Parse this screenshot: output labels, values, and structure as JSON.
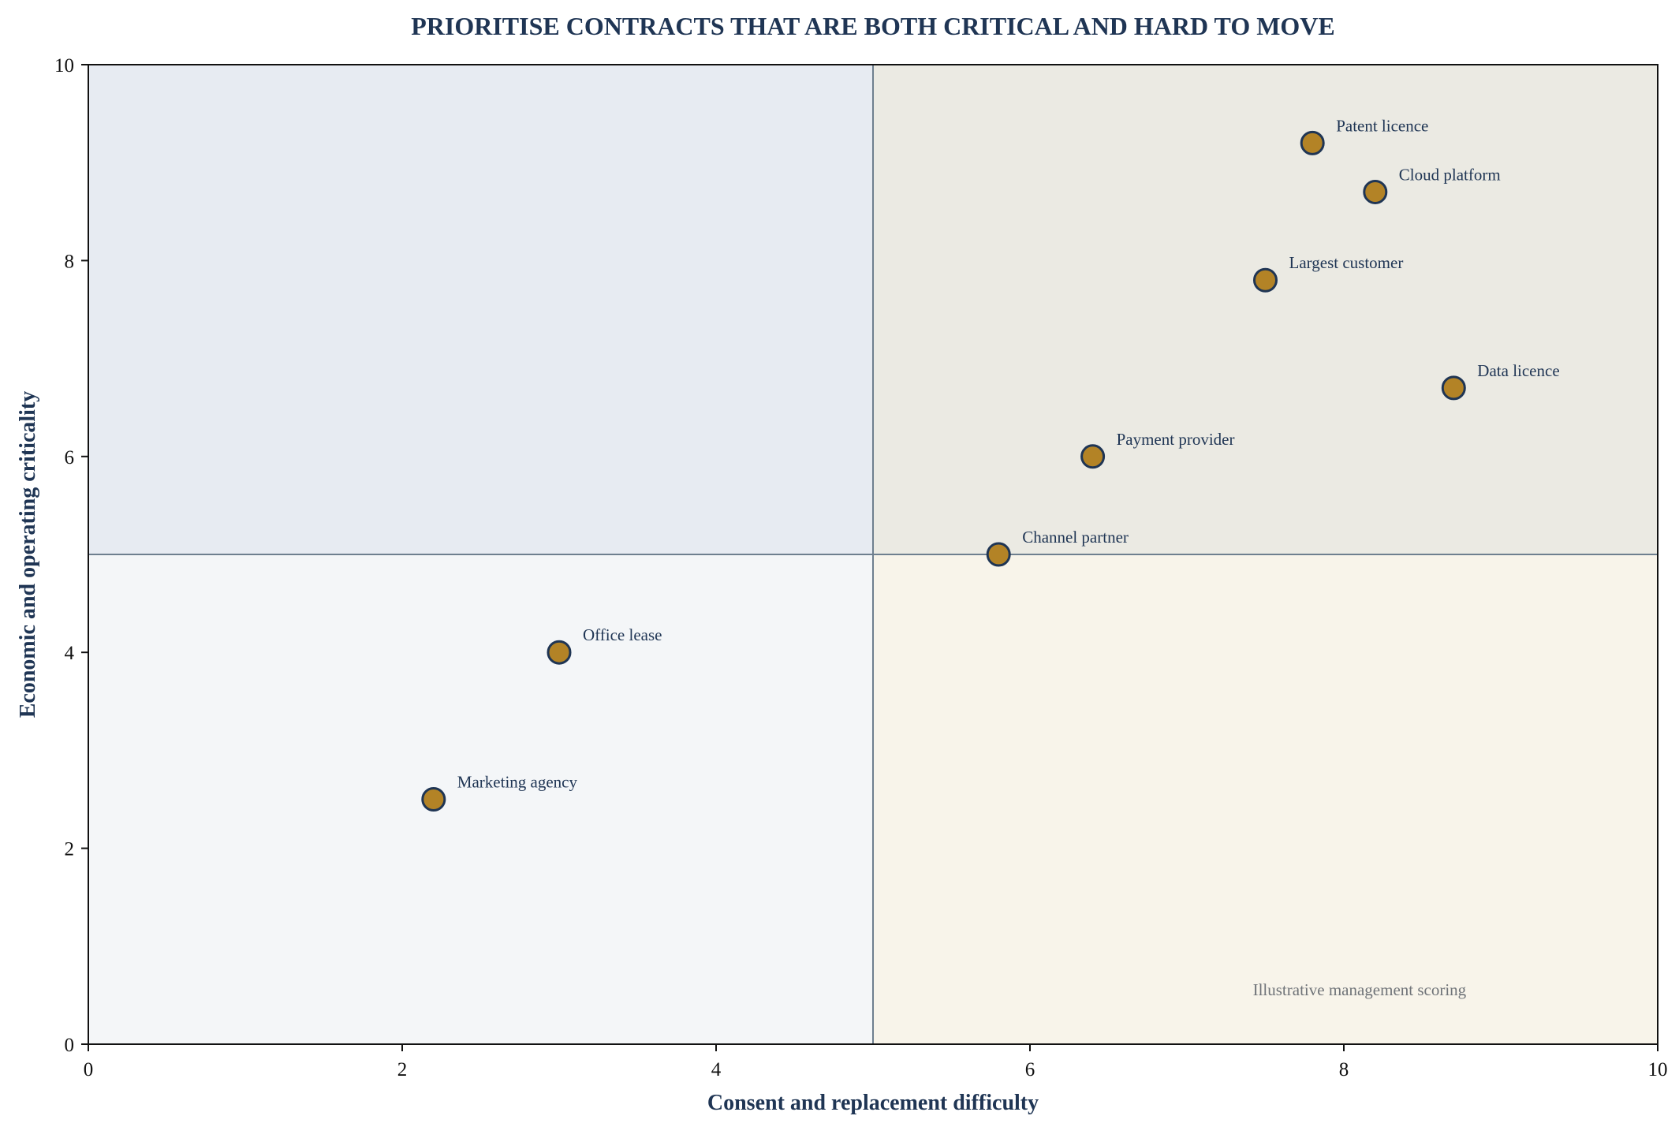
{
  "chart_data": {
    "type": "scatter",
    "title": "PRIORITISE CONTRACTS THAT ARE BOTH CRITICAL AND HARD TO MOVE",
    "xlabel": "Consent and replacement difficulty",
    "ylabel": "Economic and operating criticality",
    "xlim": [
      0,
      10
    ],
    "ylim": [
      0,
      10
    ],
    "xticks": [
      "0",
      "2",
      "4",
      "6",
      "8",
      "10"
    ],
    "yticks": [
      "0",
      "2",
      "4",
      "6",
      "8",
      "10"
    ],
    "grid": false,
    "quadrant_split": {
      "x": 5,
      "y": 5
    },
    "quadrant_colors": {
      "top_left": "#e7ebf2",
      "top_right": "#ebeae3",
      "bottom_left": "#f4f6f8",
      "bottom_right": "#f8f4ea"
    },
    "divider_color": "#6e7f8f",
    "marker_color": "#b38326",
    "marker_edge_color": "#1f3554",
    "points": [
      {
        "label": "Patent licence",
        "x": 7.8,
        "y": 9.2
      },
      {
        "label": "Cloud platform",
        "x": 8.2,
        "y": 8.7
      },
      {
        "label": "Largest customer",
        "x": 7.5,
        "y": 7.8
      },
      {
        "label": "Data licence",
        "x": 8.7,
        "y": 6.7
      },
      {
        "label": "Payment provider",
        "x": 6.4,
        "y": 6.0
      },
      {
        "label": "Channel partner",
        "x": 5.8,
        "y": 5.0
      },
      {
        "label": "Office lease",
        "x": 3.0,
        "y": 4.0
      },
      {
        "label": "Marketing agency",
        "x": 2.2,
        "y": 2.5
      }
    ],
    "annotation": "Illustrative management scoring"
  }
}
